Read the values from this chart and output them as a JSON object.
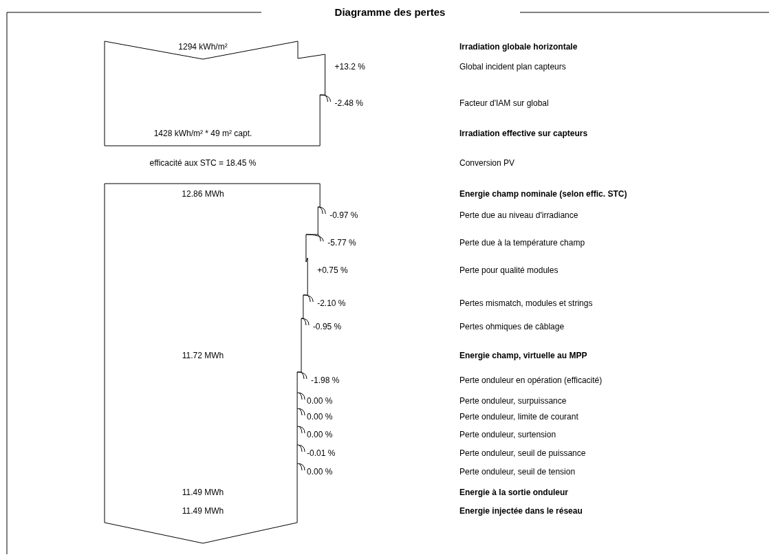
{
  "chart_data": {
    "type": "other",
    "title": "Diagramme des pertes",
    "categories": [
      "Irradiation globale horizontale",
      "Global incident plan capteurs",
      "Facteur d'IAM sur global",
      "Irradiation effective sur capteurs",
      "Conversion PV",
      "Energie champ nominale (selon effic. STC)",
      "Perte due au niveau d'irradiance",
      "Perte due à la température champ",
      "Perte pour qualité modules",
      "Pertes mismatch, modules et strings",
      "Pertes ohmiques de câblage",
      "Energie champ, virtuelle au MPP",
      "Perte onduleur en opération (efficacité)",
      "Perte onduleur, surpuissance",
      "Perte onduleur, limite de courant",
      "Perte onduleur, surtension",
      "Perte onduleur, seuil de puissance",
      "Perte onduleur, seuil de tension",
      "Energie à la sortie onduleur",
      "Energie injectée dans le réseau"
    ],
    "series": [
      {
        "values": [
          1294,
          null,
          null,
          1428,
          null,
          12.86,
          null,
          null,
          null,
          null,
          null,
          11.72,
          null,
          null,
          null,
          null,
          null,
          null,
          11.49,
          11.49
        ],
        "value_labels": [
          "1294 kWh/m²",
          null,
          null,
          "1428 kWh/m² * 49 m² capt.",
          null,
          "12.86 MWh",
          null,
          null,
          null,
          null,
          null,
          "11.72 MWh",
          null,
          null,
          null,
          null,
          null,
          null,
          "11.49 MWh",
          "11.49 MWh"
        ]
      },
      {
        "values": [
          null,
          13.2,
          -2.48,
          null,
          null,
          null,
          -0.97,
          -5.77,
          0.75,
          -2.1,
          -0.95,
          null,
          -1.98,
          0.0,
          0.0,
          0.0,
          -0.01,
          0.0,
          null,
          null
        ],
        "value_labels": [
          null,
          "+13.2 %",
          "-2.48 %",
          null,
          null,
          null,
          "-0.97 %",
          "-5.77 %",
          "+0.75 %",
          "-2.10 %",
          "-0.95 %",
          null,
          "-1.98 %",
          "0.00 %",
          "0.00 %",
          "0.00 %",
          "-0.01 %",
          "0.00 %",
          null,
          null
        ]
      },
      {
        "values": [
          null,
          null,
          null,
          null,
          18.45,
          null,
          null,
          null,
          null,
          null,
          null,
          null,
          null,
          null,
          null,
          null,
          null,
          null,
          null,
          null
        ],
        "value_labels": [
          null,
          null,
          null,
          null,
          "efficacité aux STC = 18.45 %",
          null,
          null,
          null,
          null,
          null,
          null,
          null,
          null,
          null,
          null,
          null,
          null,
          null,
          null,
          null
        ]
      }
    ]
  }
}
